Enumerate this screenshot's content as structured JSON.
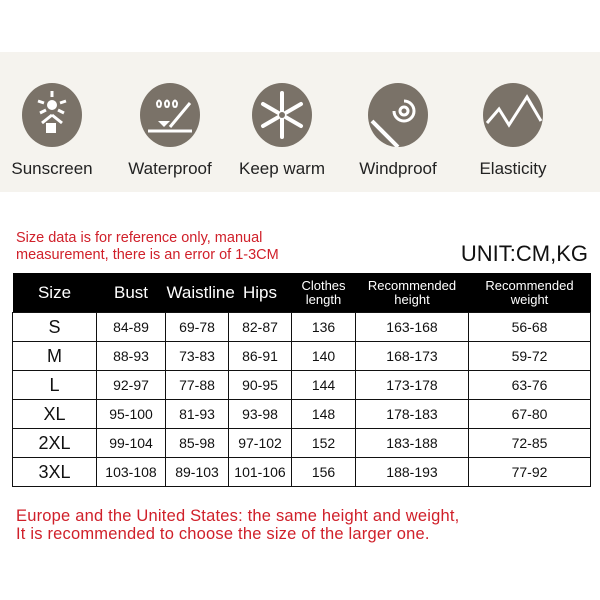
{
  "features": [
    {
      "label": "Sunscreen",
      "icon": "sunscreen-icon"
    },
    {
      "label": "Waterproof",
      "icon": "waterproof-icon"
    },
    {
      "label": "Keep warm",
      "icon": "snowflake-icon"
    },
    {
      "label": "Windproof",
      "icon": "wind-spiral-icon"
    },
    {
      "label": "Elasticity",
      "icon": "elasticity-icon"
    }
  ],
  "note": {
    "line1": "Size data is for reference only, manual",
    "line2": "measurement, there is an error of 1-3CM"
  },
  "unit": "UNIT:CM,KG",
  "table": {
    "headers": [
      "Size",
      "Bust",
      "Waistline",
      "Hips",
      "Clothes length",
      "Recommended height",
      "Recommended weight"
    ],
    "rows": [
      [
        "S",
        "84-89",
        "69-78",
        "82-87",
        "136",
        "163-168",
        "56-68"
      ],
      [
        "M",
        "88-93",
        "73-83",
        "86-91",
        "140",
        "168-173",
        "59-72"
      ],
      [
        "L",
        "92-97",
        "77-88",
        "90-95",
        "144",
        "173-178",
        "63-76"
      ],
      [
        "XL",
        "95-100",
        "81-93",
        "93-98",
        "148",
        "178-183",
        "67-80"
      ],
      [
        "2XL",
        "99-104",
        "85-98",
        "97-102",
        "152",
        "183-188",
        "72-85"
      ],
      [
        "3XL",
        "103-108",
        "89-103",
        "101-106",
        "156",
        "188-193",
        "77-92"
      ]
    ]
  },
  "footer": {
    "line1": "Europe and the United States: the same height and weight,",
    "line2": "It is recommended to choose the size of the larger one."
  },
  "colors": {
    "icon_bg": "#7a7268",
    "note_red": "#d0202a",
    "header_bg": "#000000"
  }
}
